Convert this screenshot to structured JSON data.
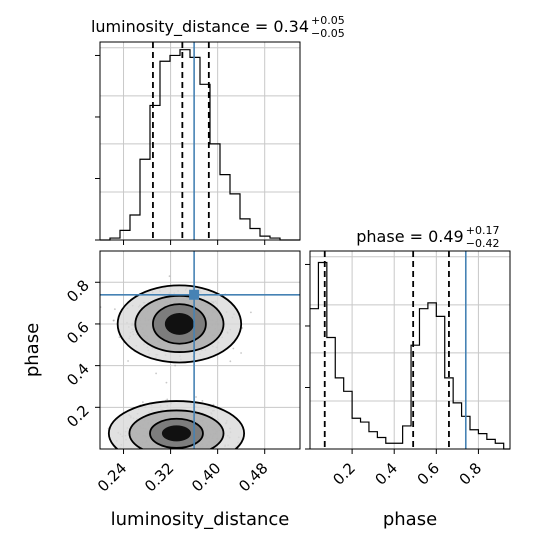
{
  "chart_data": [
    {
      "type": "histogram",
      "panel": "luminosity_distance-marginal",
      "title": {
        "param": "luminosity_distance",
        "value": "0.34",
        "plus": "+0.05",
        "minus": "−0.05"
      },
      "x_range": [
        0.2,
        0.54
      ],
      "y_range": [
        0,
        1.03
      ],
      "bin_edges": [
        0.2,
        0.217,
        0.234,
        0.251,
        0.268,
        0.285,
        0.302,
        0.319,
        0.336,
        0.353,
        0.37,
        0.387,
        0.404,
        0.421,
        0.438,
        0.455,
        0.472,
        0.489,
        0.506,
        0.523,
        0.54
      ],
      "counts": [
        0.0,
        0.01,
        0.05,
        0.13,
        0.42,
        0.7,
        0.93,
        0.96,
        0.99,
        0.95,
        0.81,
        0.5,
        0.34,
        0.24,
        0.11,
        0.06,
        0.02,
        0.01,
        0.0,
        0.0
      ],
      "quantile_lines": [
        0.29,
        0.34,
        0.385
      ],
      "truth": 0.36,
      "grid": true
    },
    {
      "type": "histogram",
      "panel": "phase-marginal",
      "title": {
        "param": "phase",
        "value": "0.49",
        "plus": "+0.17",
        "minus": "−0.42"
      },
      "xlabel": "phase",
      "x_range": [
        0.0,
        0.95
      ],
      "y_range": [
        0,
        1.03
      ],
      "x_ticks": [
        "0.2",
        "0.4",
        "0.6",
        "0.8"
      ],
      "bin_edges": [
        0.0,
        0.04,
        0.08,
        0.12,
        0.16,
        0.2,
        0.24,
        0.28,
        0.32,
        0.36,
        0.4,
        0.44,
        0.48,
        0.52,
        0.56,
        0.6,
        0.64,
        0.68,
        0.72,
        0.76,
        0.8,
        0.84,
        0.88,
        0.92,
        0.95
      ],
      "counts": [
        0.73,
        0.97,
        0.58,
        0.37,
        0.3,
        0.16,
        0.14,
        0.09,
        0.06,
        0.03,
        0.03,
        0.12,
        0.54,
        0.73,
        0.76,
        0.69,
        0.37,
        0.24,
        0.17,
        0.1,
        0.08,
        0.05,
        0.03,
        0.0
      ],
      "quantile_lines": [
        0.07,
        0.49,
        0.66
      ],
      "truth": 0.74,
      "grid": true
    },
    {
      "type": "scatter-contour",
      "panel": "luminosity_distance-vs-phase",
      "xlabel": "luminosity_distance",
      "ylabel": "phase",
      "x_range": [
        0.2,
        0.54
      ],
      "y_range": [
        0.0,
        0.95
      ],
      "x_ticks": [
        "0.24",
        "0.32",
        "0.40",
        "0.48"
      ],
      "y_ticks": [
        "0.2",
        "0.4",
        "0.6",
        "0.8"
      ],
      "modes": [
        {
          "cx": 0.335,
          "cy": 0.6,
          "sx": 0.035,
          "sy": 0.07,
          "levels": [
            [
              0.045,
              0.095
            ],
            [
              0.075,
              0.135
            ],
            [
              0.105,
              0.185
            ]
          ]
        },
        {
          "cx": 0.33,
          "cy": 0.075,
          "sx": 0.035,
          "sy": 0.06,
          "levels": [
            [
              0.045,
              0.07
            ],
            [
              0.08,
              0.11
            ],
            [
              0.115,
              0.155
            ]
          ]
        }
      ],
      "truth": {
        "x": 0.36,
        "y": 0.74
      },
      "grid": true
    }
  ]
}
